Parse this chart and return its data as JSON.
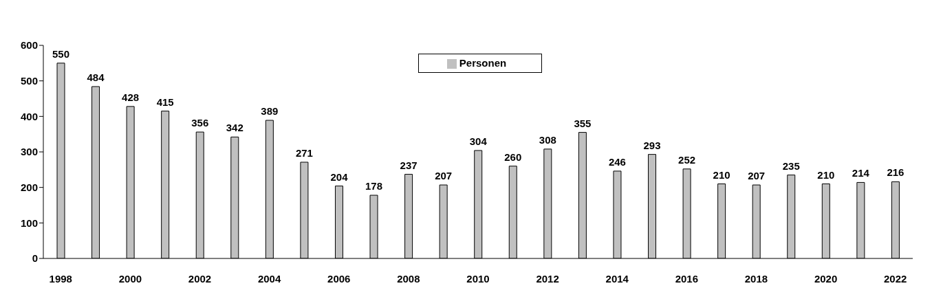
{
  "chart_data": {
    "type": "bar",
    "categories": [
      "1998",
      null,
      "2000",
      null,
      "2002",
      null,
      "2004",
      null,
      "2006",
      null,
      "2008",
      null,
      "2010",
      null,
      "2012",
      null,
      "2014",
      null,
      "2016",
      null,
      "2018",
      null,
      "2020",
      null,
      "2022"
    ],
    "series": [
      {
        "name": "Personen",
        "color": "#c0c0c0",
        "values": [
          550,
          484,
          428,
          415,
          356,
          342,
          389,
          271,
          204,
          178,
          237,
          207,
          304,
          260,
          308,
          355,
          246,
          293,
          252,
          210,
          207,
          235,
          210,
          214,
          216
        ]
      }
    ],
    "ylim": [
      0,
      600
    ],
    "yticks": [
      0,
      100,
      200,
      300,
      400,
      500,
      600
    ],
    "grid": false,
    "legend": "top",
    "data_labels": true
  }
}
